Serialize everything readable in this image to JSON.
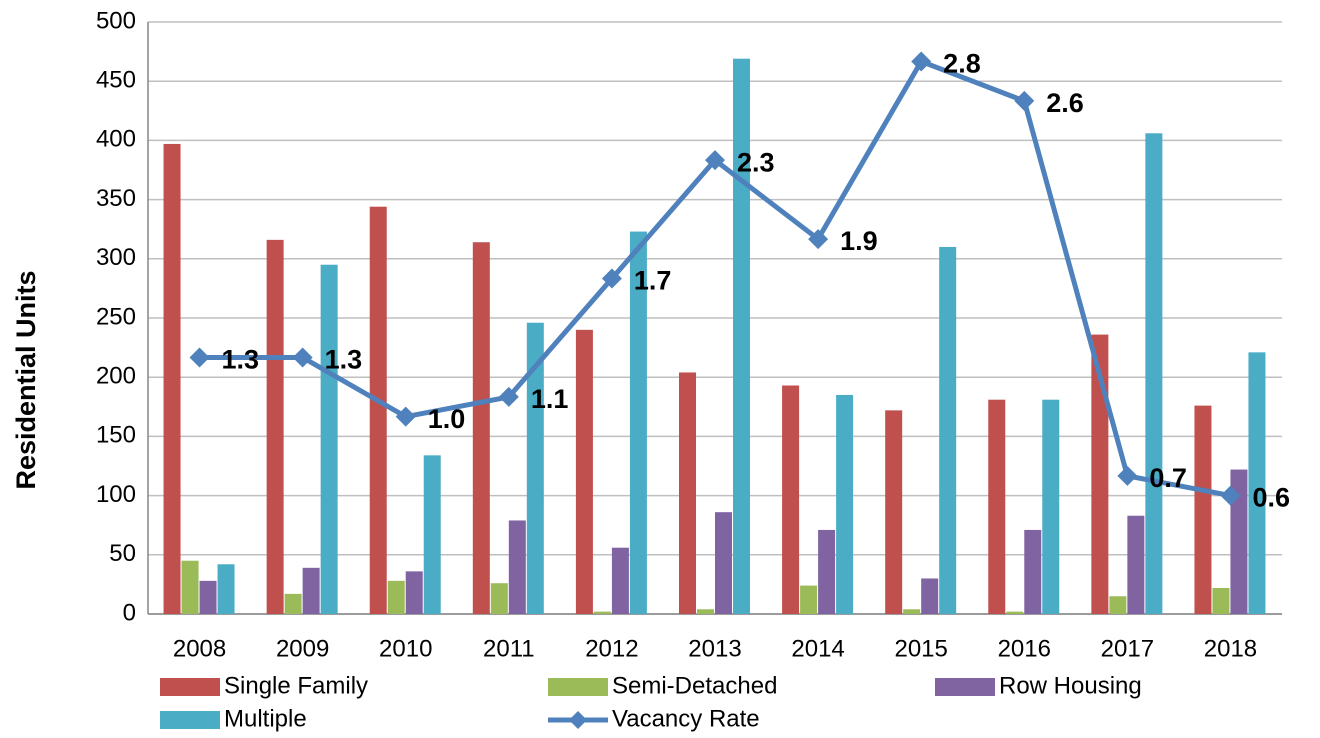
{
  "chart_data": {
    "type": "bar",
    "ylabel": "Residential Units",
    "categories": [
      "2008",
      "2009",
      "2010",
      "2011",
      "2012",
      "2013",
      "2014",
      "2015",
      "2016",
      "2017",
      "2018"
    ],
    "series": [
      {
        "name": "Single Family",
        "color": "#c0504d",
        "values": [
          397,
          316,
          344,
          314,
          240,
          204,
          193,
          172,
          181,
          236,
          176
        ]
      },
      {
        "name": "Semi-Detached",
        "color": "#9bbb59",
        "values": [
          45,
          17,
          28,
          26,
          2,
          4,
          24,
          4,
          2,
          15,
          22
        ]
      },
      {
        "name": "Row Housing",
        "color": "#8064a2",
        "values": [
          28,
          39,
          36,
          79,
          56,
          86,
          71,
          30,
          71,
          83,
          122
        ]
      },
      {
        "name": "Multiple",
        "color": "#4bacc6",
        "values": [
          42,
          295,
          134,
          246,
          323,
          469,
          185,
          310,
          181,
          406,
          221
        ]
      },
      {
        "name": "Vacancy Rate",
        "color": "#4f81bd",
        "type": "line",
        "axis": "y2",
        "values": [
          1.3,
          1.3,
          1.0,
          1.1,
          1.7,
          2.3,
          1.9,
          2.8,
          2.6,
          0.7,
          0.6
        ],
        "value_labels": [
          "1.3",
          "1.3",
          "1.0",
          "1.1",
          "1.7",
          "2.3",
          "1.9",
          "2.8",
          "2.6",
          "0.7",
          "0.6"
        ]
      }
    ],
    "ylim": [
      0,
      500
    ],
    "yticks": [
      0,
      50,
      100,
      150,
      200,
      250,
      300,
      350,
      400,
      450,
      500
    ],
    "y2lim": [
      0,
      3
    ],
    "grid": true,
    "legend": "bottom"
  }
}
